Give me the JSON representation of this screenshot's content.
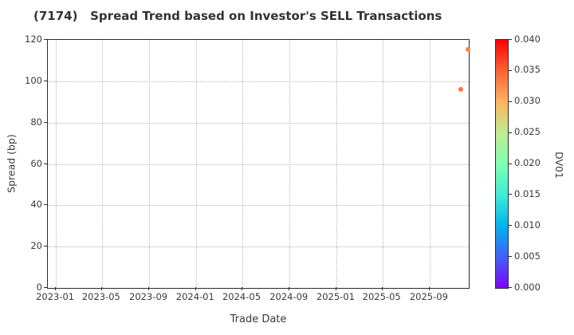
{
  "title": "(7174)   Spread Trend based on Investor's SELL Transactions",
  "colors": {
    "background": "#ffffff",
    "text": "#333333",
    "spine": "#2b2b2b",
    "grid": "#b5b5b5"
  },
  "chart_data": {
    "type": "scatter",
    "title": "(7174)   Spread Trend based on Investor's SELL Transactions",
    "xlabel": "Trade Date",
    "ylabel": "Spread (bp)",
    "grid": "dotted",
    "legend": "none",
    "x_range": [
      "2022-12-11",
      "2025-12-12"
    ],
    "ylim": [
      0,
      120
    ],
    "x_ticks": [
      {
        "label": "2023-01",
        "date": "2023-01-01"
      },
      {
        "label": "2023-05",
        "date": "2023-05-01"
      },
      {
        "label": "2023-09",
        "date": "2023-09-01"
      },
      {
        "label": "2024-01",
        "date": "2024-01-01"
      },
      {
        "label": "2024-05",
        "date": "2024-05-01"
      },
      {
        "label": "2024-09",
        "date": "2024-09-01"
      },
      {
        "label": "2025-01",
        "date": "2025-01-01"
      },
      {
        "label": "2025-05",
        "date": "2025-05-01"
      },
      {
        "label": "2025-09",
        "date": "2025-09-01"
      }
    ],
    "y_ticks": [
      0,
      20,
      40,
      60,
      80,
      100,
      120
    ],
    "points": [
      {
        "date": "2025-11-21",
        "spread_bp": 96,
        "dv01": 0.034
      },
      {
        "date": "2025-12-09",
        "spread_bp": 115.5,
        "dv01": 0.033
      }
    ],
    "colorbar": {
      "label": "DV01",
      "min": 0.0,
      "max": 0.04,
      "colormap": "rainbow",
      "ticks": [
        "0.000",
        "0.005",
        "0.010",
        "0.015",
        "0.020",
        "0.025",
        "0.030",
        "0.035",
        "0.040"
      ]
    }
  }
}
